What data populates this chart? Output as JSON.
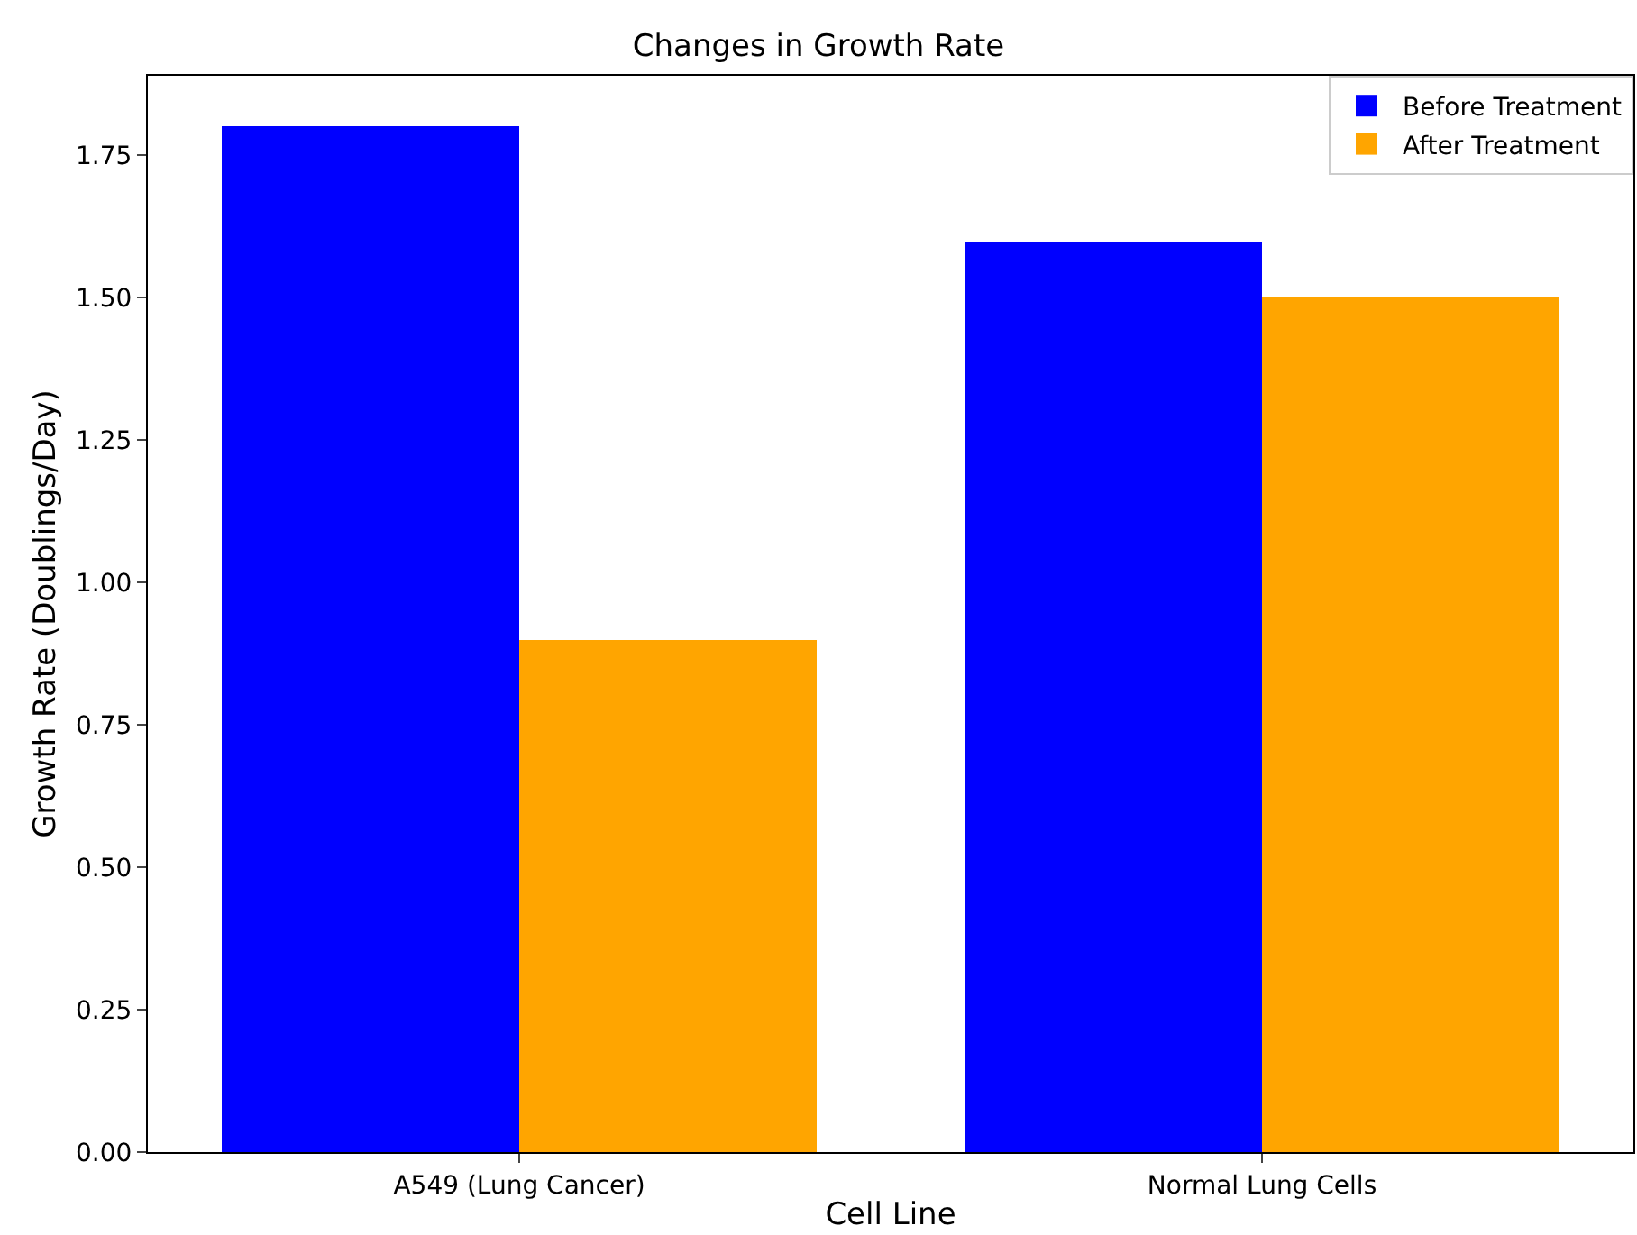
{
  "chart_data": {
    "type": "bar",
    "title": "Changes in Growth Rate",
    "xlabel": "Cell Line",
    "ylabel": "Growth Rate (Doublings/Day)",
    "categories": [
      "A549 (Lung Cancer)",
      "Normal Lung Cells"
    ],
    "series": [
      {
        "name": "Before Treatment",
        "color": "#0000ff",
        "values": [
          1.8,
          1.6
        ]
      },
      {
        "name": "After Treatment",
        "color": "#ffa500",
        "values": [
          0.9,
          1.5
        ]
      }
    ],
    "ylim": [
      0,
      1.89
    ],
    "yticks": [
      {
        "value": 0,
        "label": "0.00"
      },
      {
        "value": 0.25,
        "label": "0.25"
      },
      {
        "value": 0.5,
        "label": "0.50"
      },
      {
        "value": 0.75,
        "label": "0.75"
      },
      {
        "value": 1,
        "label": "1.00"
      },
      {
        "value": 1.25,
        "label": "1.25"
      },
      {
        "value": 1.5,
        "label": "1.50"
      },
      {
        "value": 1.75,
        "label": "1.75"
      }
    ],
    "legend": "top right"
  }
}
